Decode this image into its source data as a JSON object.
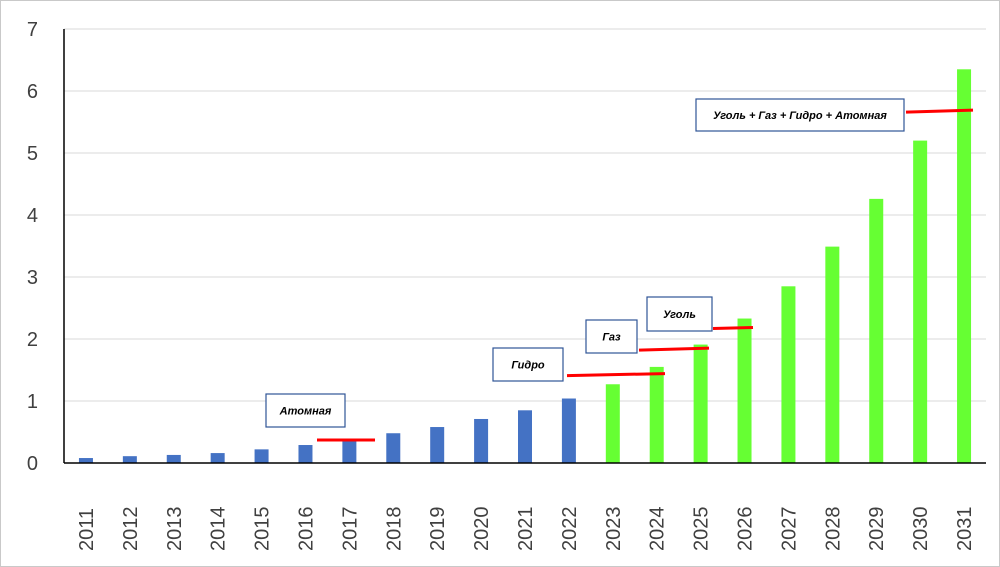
{
  "chart_data": {
    "type": "bar",
    "categories": [
      "2011",
      "2012",
      "2013",
      "2014",
      "2015",
      "2016",
      "2017",
      "2018",
      "2019",
      "2020",
      "2021",
      "2022",
      "2023",
      "2024",
      "2025",
      "2026",
      "2027",
      "2028",
      "2029",
      "2030",
      "2031"
    ],
    "values": [
      0.08,
      0.11,
      0.13,
      0.16,
      0.22,
      0.29,
      0.37,
      0.48,
      0.58,
      0.71,
      0.85,
      1.04,
      1.27,
      1.55,
      1.91,
      2.33,
      2.85,
      3.49,
      4.26,
      5.2,
      6.35
    ],
    "bar_colors": [
      "#4472c4",
      "#4472c4",
      "#4472c4",
      "#4472c4",
      "#4472c4",
      "#4472c4",
      "#4472c4",
      "#4472c4",
      "#4472c4",
      "#4472c4",
      "#4472c4",
      "#4472c4",
      "#66ff33",
      "#66ff33",
      "#66ff33",
      "#66ff33",
      "#66ff33",
      "#66ff33",
      "#66ff33",
      "#66ff33",
      "#66ff33"
    ],
    "title": "",
    "xlabel": "",
    "ylabel": "",
    "ylim": [
      0,
      7
    ],
    "y_ticks": [
      "0",
      "1",
      "2",
      "3",
      "4",
      "5",
      "6",
      "7"
    ],
    "grid": true,
    "legend": "none",
    "annotations": [
      {
        "text": "Атомная",
        "y": 0.37,
        "x_start": "2017",
        "x_end": "2017"
      },
      {
        "text": "Гидро",
        "y": 1.41,
        "x_start": "2022",
        "x_end": "2024"
      },
      {
        "text": "Газ",
        "y": 1.82,
        "x_start": "2024",
        "x_end": "2025"
      },
      {
        "text": "Уголь",
        "y": 2.17,
        "x_start": "2025",
        "x_end": "2026"
      },
      {
        "text": "Уголь + Газ + Гидро + Атомная",
        "y": 5.66,
        "x_start": "2030",
        "x_end": "2031"
      }
    ],
    "colors": {
      "historical": "#4472c4",
      "forecast": "#66ff33",
      "annotation_line": "#ff0000",
      "annotation_border": "#2f5597"
    }
  }
}
